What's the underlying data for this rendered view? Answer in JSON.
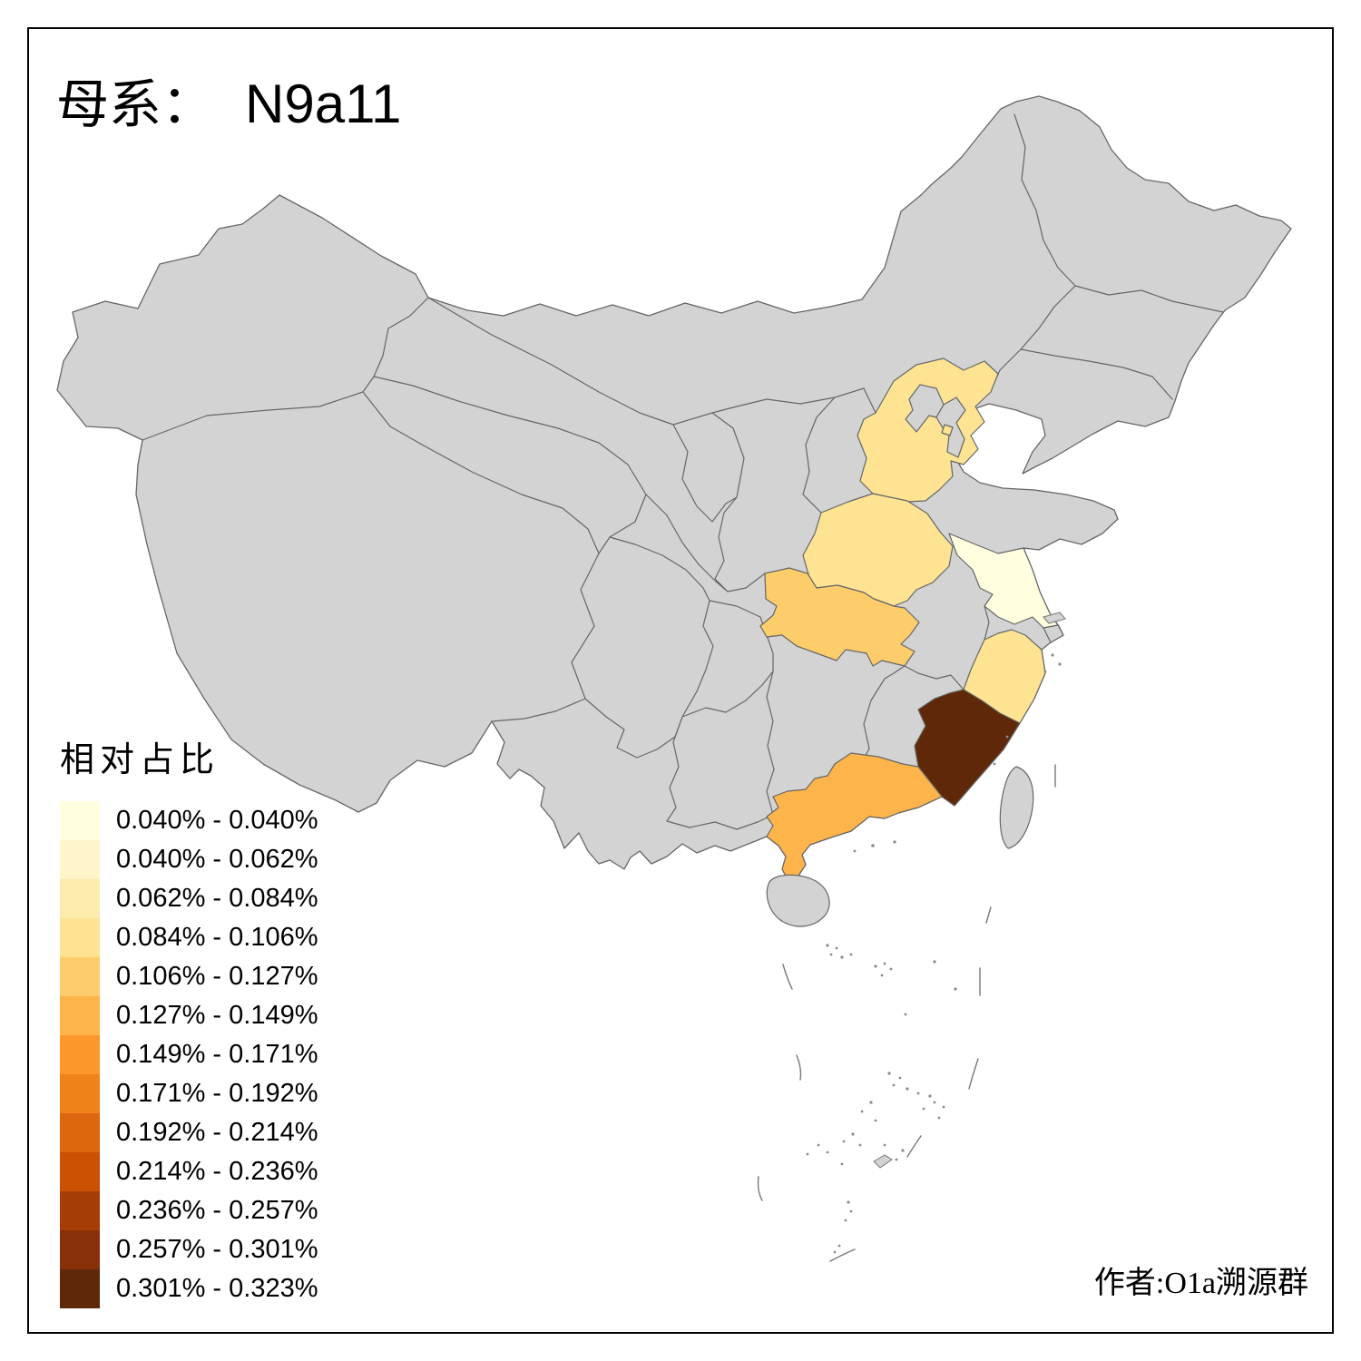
{
  "title": {
    "prefix": "母系：",
    "haplogroup": "N9a11"
  },
  "legend": {
    "title": "相对占比",
    "classes": [
      {
        "label": "0.040% - 0.040%",
        "color": "#FFFFDF"
      },
      {
        "label": "0.040% - 0.062%",
        "color": "#FFF5C8"
      },
      {
        "label": "0.062% - 0.084%",
        "color": "#FEEBAE"
      },
      {
        "label": "0.084% - 0.106%",
        "color": "#FDE392"
      },
      {
        "label": "0.106% - 0.127%",
        "color": "#FDCD6C"
      },
      {
        "label": "0.127% - 0.149%",
        "color": "#FDB44A"
      },
      {
        "label": "0.149% - 0.171%",
        "color": "#FC982B"
      },
      {
        "label": "0.171% - 0.192%",
        "color": "#F0821A"
      },
      {
        "label": "0.192% - 0.214%",
        "color": "#DD670E"
      },
      {
        "label": "0.214% - 0.236%",
        "color": "#CB5103"
      },
      {
        "label": "0.236% - 0.257%",
        "color": "#A63D04"
      },
      {
        "label": "0.257% - 0.301%",
        "color": "#87300A"
      },
      {
        "label": "0.301% - 0.323%",
        "color": "#5F2808"
      }
    ]
  },
  "map": {
    "land_fill": "#D3D3D3",
    "border_color": "#666666",
    "background": "#FFFFFF",
    "highlighted_provinces": [
      {
        "name": "Jiangsu",
        "class_index": 0,
        "range": "0.040% - 0.040%"
      },
      {
        "name": "Hebei",
        "class_index": 3,
        "range": "0.084% - 0.106%"
      },
      {
        "name": "Henan",
        "class_index": 3,
        "range": "0.084% - 0.106%"
      },
      {
        "name": "Zhejiang",
        "class_index": 3,
        "range": "0.084% - 0.106%"
      },
      {
        "name": "Hubei",
        "class_index": 4,
        "range": "0.106% - 0.127%"
      },
      {
        "name": "Guangdong",
        "class_index": 5,
        "range": "0.127% - 0.149%"
      },
      {
        "name": "Fujian",
        "class_index": 12,
        "range": "0.301% - 0.323%"
      }
    ]
  },
  "credit": "作者:O1a溯源群"
}
